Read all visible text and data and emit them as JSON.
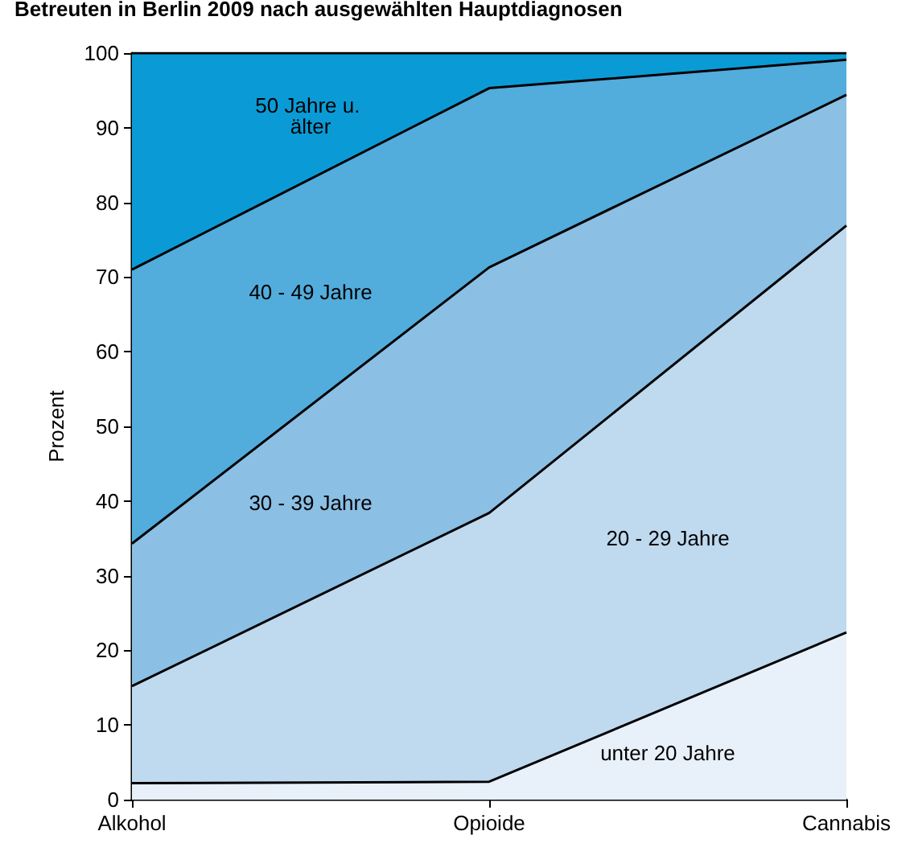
{
  "chart_data": {
    "type": "area",
    "title": "Betreuten in Berlin 2009 nach ausgewählten Hauptdiagnosen",
    "ylabel": "Prozent",
    "categories": [
      "Alkohol",
      "Opioide",
      "Cannabis"
    ],
    "stacked": true,
    "ylim": [
      0,
      100
    ],
    "yticks": [
      0,
      10,
      20,
      30,
      40,
      50,
      60,
      70,
      80,
      90,
      100
    ],
    "grid": false,
    "legend": false,
    "marker": "none",
    "series": [
      {
        "name": "unter 20 Jahre",
        "color": "#e8f0fa",
        "values": [
          2.2,
          2.4,
          22.4
        ]
      },
      {
        "name": "20 - 29 Jahre",
        "color": "#bfd9ee",
        "values": [
          13,
          36,
          54.5
        ]
      },
      {
        "name": "30 - 39 Jahre",
        "color": "#8bbfe4",
        "values": [
          19.1,
          32.9,
          17.5
        ]
      },
      {
        "name": "40 - 49 Jahre",
        "color": "#52acdc",
        "values": [
          36.7,
          24,
          4.7
        ]
      },
      {
        "name": "50 Jahre u. älter",
        "color": "#0a9bd6",
        "values": [
          29,
          4.7,
          0.9
        ]
      }
    ]
  }
}
